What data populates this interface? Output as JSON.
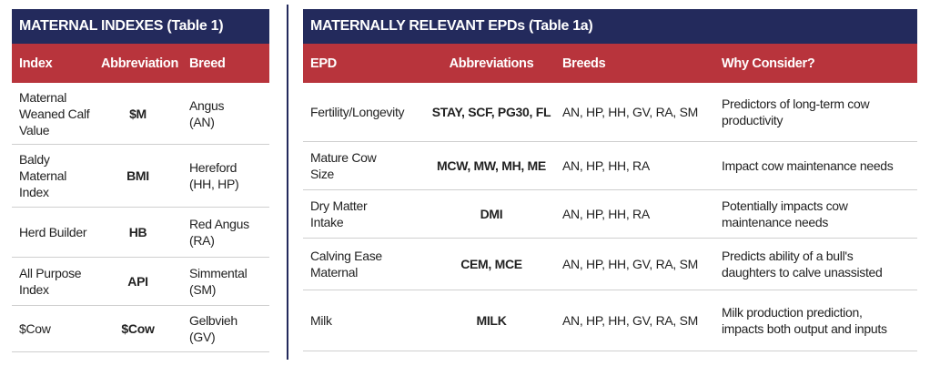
{
  "table1": {
    "title": "MATERNAL INDEXES (Table 1)",
    "headers": [
      "Index",
      "Abbreviation",
      "Breed"
    ],
    "rows": [
      {
        "index": "Maternal Weaned Calf Value",
        "abbr": "$M",
        "breed": "Angus (AN)"
      },
      {
        "index": "Baldy Maternal Index",
        "abbr": "BMI",
        "breed": "Hereford (HH, HP)"
      },
      {
        "index": "Herd Builder",
        "abbr": "HB",
        "breed": "Red Angus (RA)"
      },
      {
        "index": "All Purpose Index",
        "abbr": "API",
        "breed": "Simmental (SM)"
      },
      {
        "index": "$Cow",
        "abbr": "$Cow",
        "breed": "Gelbvieh (GV)"
      }
    ]
  },
  "table2": {
    "title": "MATERNALLY RELEVANT EPDs (Table 1a)",
    "headers": [
      "EPD",
      "Abbreviations",
      "Breeds",
      "Why Consider?"
    ],
    "rows": [
      {
        "epd": "Fertility/Longevity",
        "abbr": "STAY, SCF, PG30, FL",
        "breeds": "AN, HP, HH, GV, RA, SM",
        "why": "Predictors of long-term cow productivity"
      },
      {
        "epd": "Mature Cow Size",
        "abbr": "MCW, MW, MH, ME",
        "breeds": "AN, HP, HH, RA",
        "why": "Impact cow maintenance needs"
      },
      {
        "epd": "Dry Matter Intake",
        "abbr": "DMI",
        "breeds": "AN, HP, HH, RA",
        "why": "Potentially impacts cow maintenance needs"
      },
      {
        "epd": "Calving Ease Maternal",
        "abbr": "CEM, MCE",
        "breeds": "AN, HP, HH, GV, RA, SM",
        "why": "Predicts ability of a bull's daughters to calve unassisted"
      },
      {
        "epd": "Milk",
        "abbr": "MILK",
        "breeds": "AN, HP, HH, GV, RA, SM",
        "why": "Milk production prediction, impacts both output and inputs"
      }
    ]
  },
  "colors": {
    "navy": "#232a5c",
    "red": "#b8343c"
  }
}
